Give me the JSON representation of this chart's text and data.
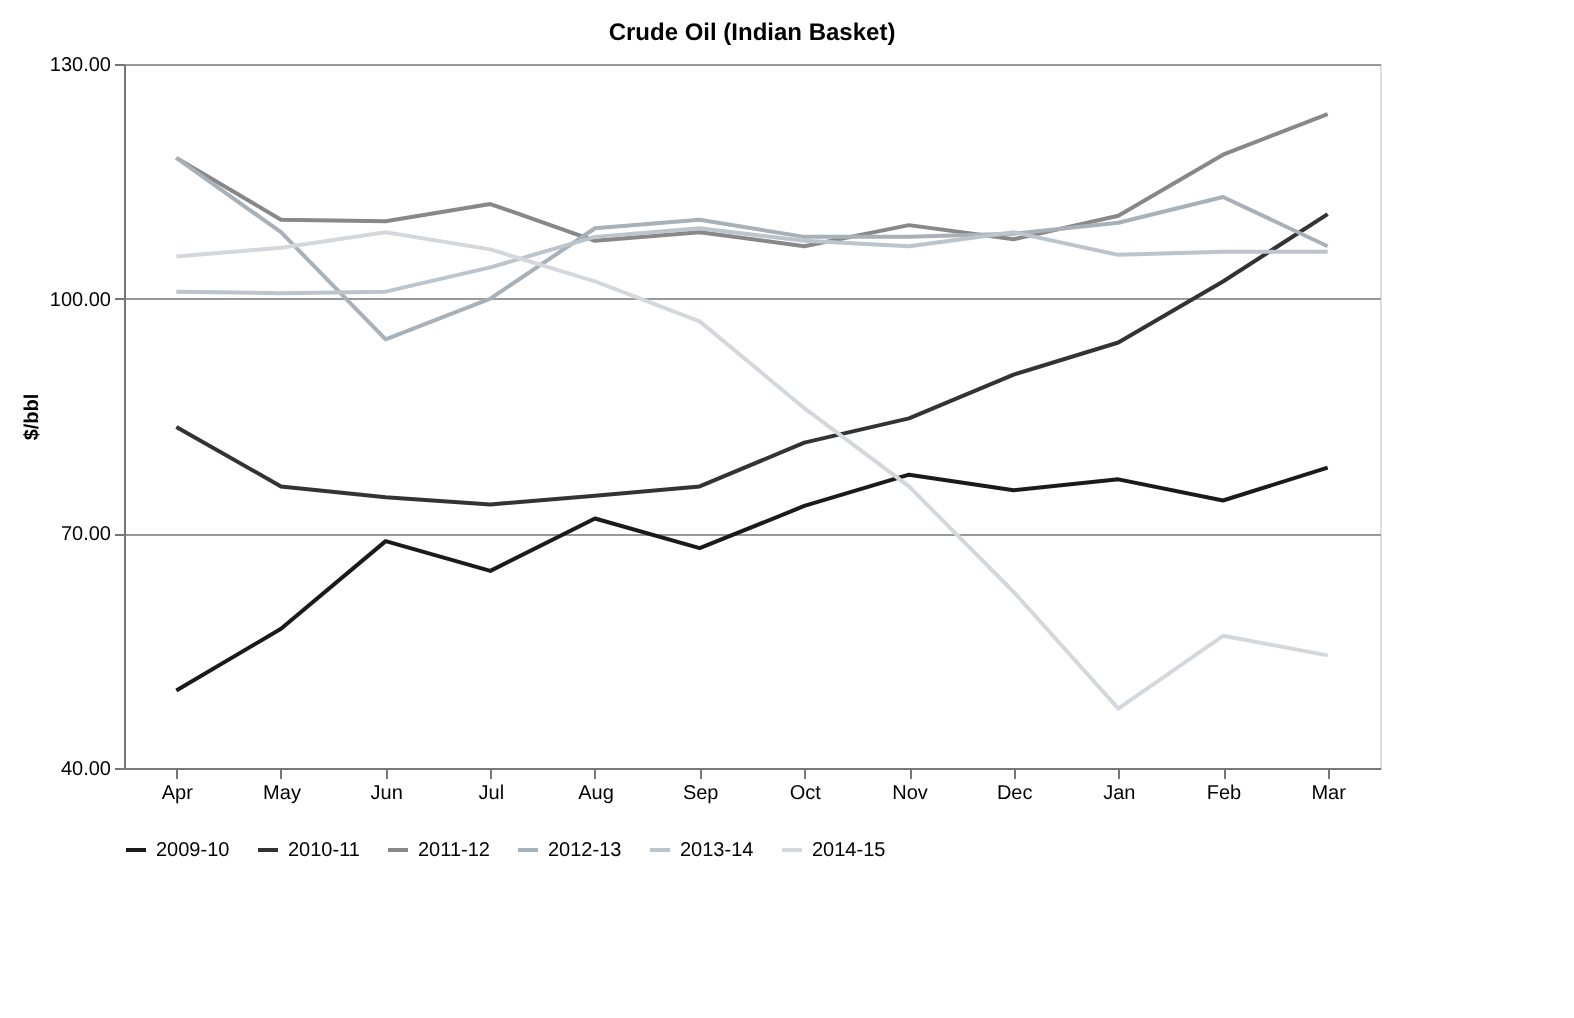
{
  "chart_data": {
    "type": "line",
    "title": "Crude Oil (Indian Basket)",
    "ylabel": "$/bbl",
    "categories": [
      "Apr",
      "May",
      "Jun",
      "Jul",
      "Aug",
      "Sep",
      "Oct",
      "Nov",
      "Dec",
      "Jan",
      "Feb",
      "Mar"
    ],
    "series": [
      {
        "name": "2009-10",
        "color": "#1a1a1a",
        "values": [
          49.9,
          57.8,
          69.0,
          65.2,
          71.9,
          68.1,
          73.5,
          77.5,
          75.5,
          76.9,
          74.2,
          78.4
        ]
      },
      {
        "name": "2010-11",
        "color": "#333333",
        "values": [
          83.6,
          76.0,
          74.6,
          73.7,
          74.8,
          76.0,
          81.6,
          84.7,
          90.3,
          94.4,
          102.2,
          110.8
        ]
      },
      {
        "name": "2011-12",
        "color": "#888888",
        "values": [
          118.0,
          110.1,
          109.9,
          112.1,
          107.4,
          108.5,
          106.7,
          109.4,
          107.6,
          110.6,
          118.4,
          123.6
        ]
      },
      {
        "name": "2012-13",
        "color": "#a8b0b8",
        "values": [
          118.0,
          108.5,
          94.8,
          100.0,
          109.0,
          110.1,
          107.9,
          107.9,
          108.3,
          109.7,
          113.0,
          106.7
        ]
      },
      {
        "name": "2013-14",
        "color": "#bcc4cc",
        "values": [
          100.9,
          100.7,
          100.9,
          104.0,
          107.9,
          109.0,
          107.4,
          106.7,
          108.5,
          105.6,
          106.0,
          106.0
        ]
      },
      {
        "name": "2014-15",
        "color": "#d4d8dc",
        "values": [
          105.4,
          106.5,
          108.5,
          106.3,
          102.2,
          97.1,
          86.0,
          76.0,
          62.5,
          47.6,
          56.9,
          54.4
        ]
      }
    ],
    "ylim": [
      40,
      130
    ],
    "yticks": [
      {
        "value": 40,
        "label": "40.00"
      },
      {
        "value": 70,
        "label": "70.00"
      },
      {
        "value": 100,
        "label": "100.00"
      },
      {
        "value": 130,
        "label": "130.00"
      }
    ],
    "grid": "y",
    "legend": "bottom",
    "marker": "none",
    "line_style": "solid"
  }
}
